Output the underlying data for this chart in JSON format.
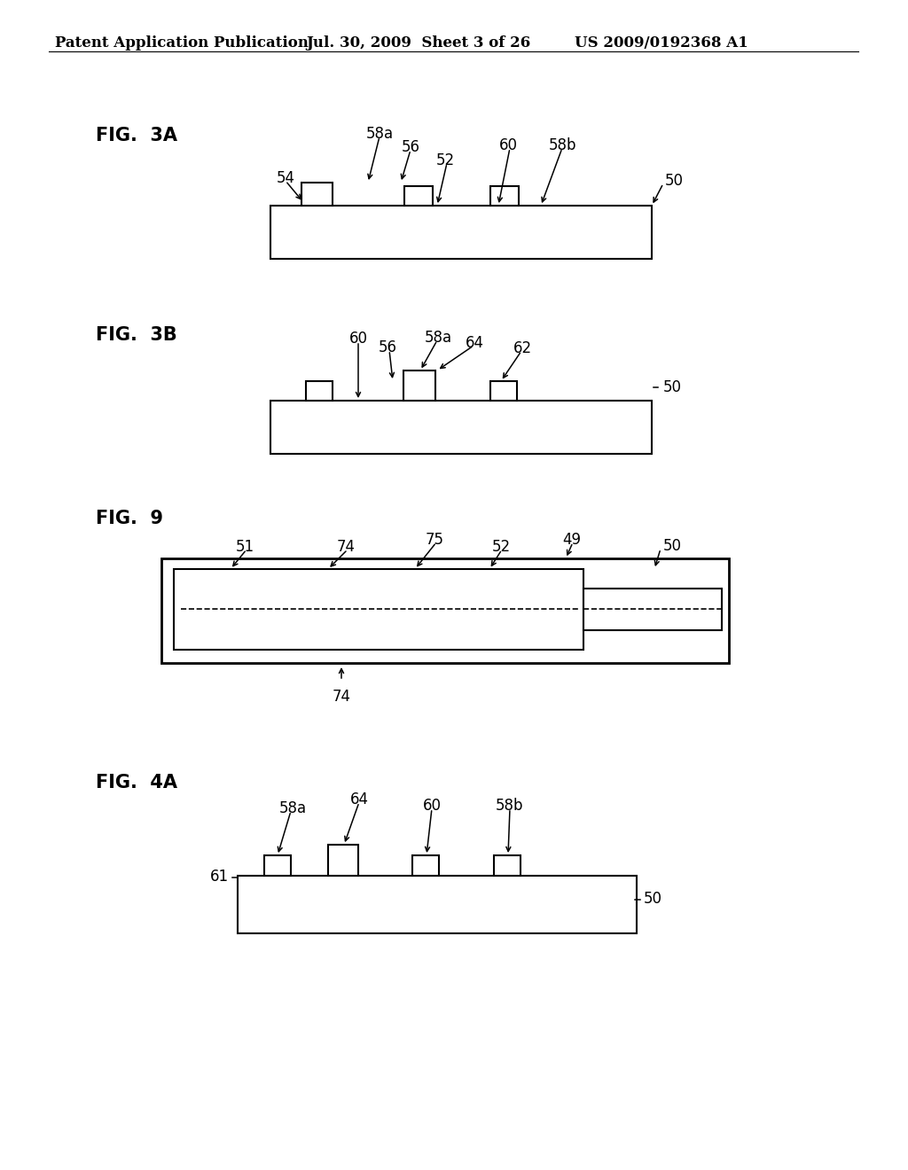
{
  "bg_color": "#ffffff",
  "header_left": "Patent Application Publication",
  "header_mid": "Jul. 30, 2009  Sheet 3 of 26",
  "header_right": "US 2009/0192368 A1",
  "fig3a_label": "FIG.  3A",
  "fig3b_label": "FIG.  3B",
  "fig9_label": "FIG.  9",
  "fig4a_label": "FIG.  4A",
  "line_color": "#000000",
  "fs_header": 12,
  "fs_figlabel": 15,
  "fs_ref": 12
}
